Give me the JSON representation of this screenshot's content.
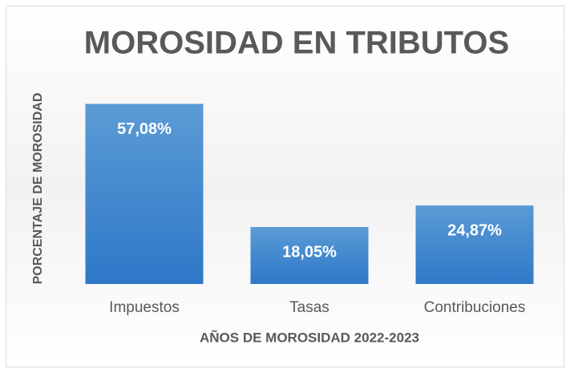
{
  "chart_data": {
    "type": "bar",
    "title": "MOROSIDAD EN TRIBUTOS",
    "x_label": "AÑOS DE MOROSIDAD 2022-2023",
    "y_label": "PORCENTAJE DE MOROSIDAD",
    "categories": [
      "Impuestos",
      "Tasas",
      "Contribuciones"
    ],
    "values": [
      57.08,
      18.05,
      24.87
    ],
    "value_labels": [
      "57,08%",
      "18,05%",
      "24,87%"
    ],
    "color": "#4a8fd6",
    "ylim": [
      0,
      60
    ]
  }
}
